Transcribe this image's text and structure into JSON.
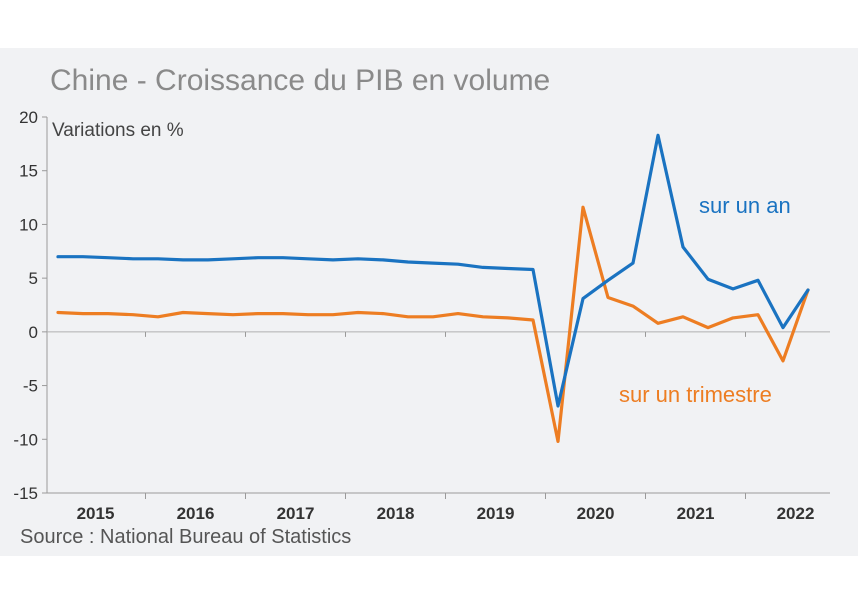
{
  "chart_data": {
    "type": "line",
    "title": "Chine - Croissance du PIB en volume",
    "ylabel": "Variations en %",
    "source": "Source : National Bureau of Statistics",
    "ylim": [
      -15,
      20
    ],
    "yticks": [
      "20",
      "15",
      "10",
      "5",
      "0",
      "-5",
      "-10",
      "-15"
    ],
    "x_tick_labels": [
      "2015",
      "2016",
      "2017",
      "2018",
      "2019",
      "2020",
      "2021",
      "2022"
    ],
    "x": [
      "2015T1",
      "2015T2",
      "2015T3",
      "2015T4",
      "2016T1",
      "2016T2",
      "2016T3",
      "2016T4",
      "2017T1",
      "2017T2",
      "2017T3",
      "2017T4",
      "2018T1",
      "2018T2",
      "2018T3",
      "2018T4",
      "2019T1",
      "2019T2",
      "2019T3",
      "2019T4",
      "2020T1",
      "2020T2",
      "2020T3",
      "2020T4",
      "2021T1",
      "2021T2",
      "2021T3",
      "2021T4",
      "2022T1",
      "2022T2",
      "2022T3"
    ],
    "grid": false,
    "series": [
      {
        "name": "sur un an",
        "color": "#1a73c1",
        "values": [
          7.0,
          7.0,
          6.9,
          6.8,
          6.8,
          6.7,
          6.7,
          6.8,
          6.9,
          6.9,
          6.8,
          6.7,
          6.8,
          6.7,
          6.5,
          6.4,
          6.3,
          6.0,
          5.9,
          5.8,
          -6.9,
          3.1,
          4.8,
          6.4,
          18.3,
          7.9,
          4.9,
          4.0,
          4.8,
          0.4,
          3.9
        ]
      },
      {
        "name": "sur un trimestre",
        "color": "#ed7d22",
        "values": [
          1.8,
          1.7,
          1.7,
          1.6,
          1.4,
          1.8,
          1.7,
          1.6,
          1.7,
          1.7,
          1.6,
          1.6,
          1.8,
          1.7,
          1.4,
          1.4,
          1.7,
          1.4,
          1.3,
          1.1,
          -10.2,
          11.6,
          3.2,
          2.4,
          0.8,
          1.4,
          0.4,
          1.3,
          1.6,
          -2.7,
          3.9
        ]
      }
    ]
  }
}
